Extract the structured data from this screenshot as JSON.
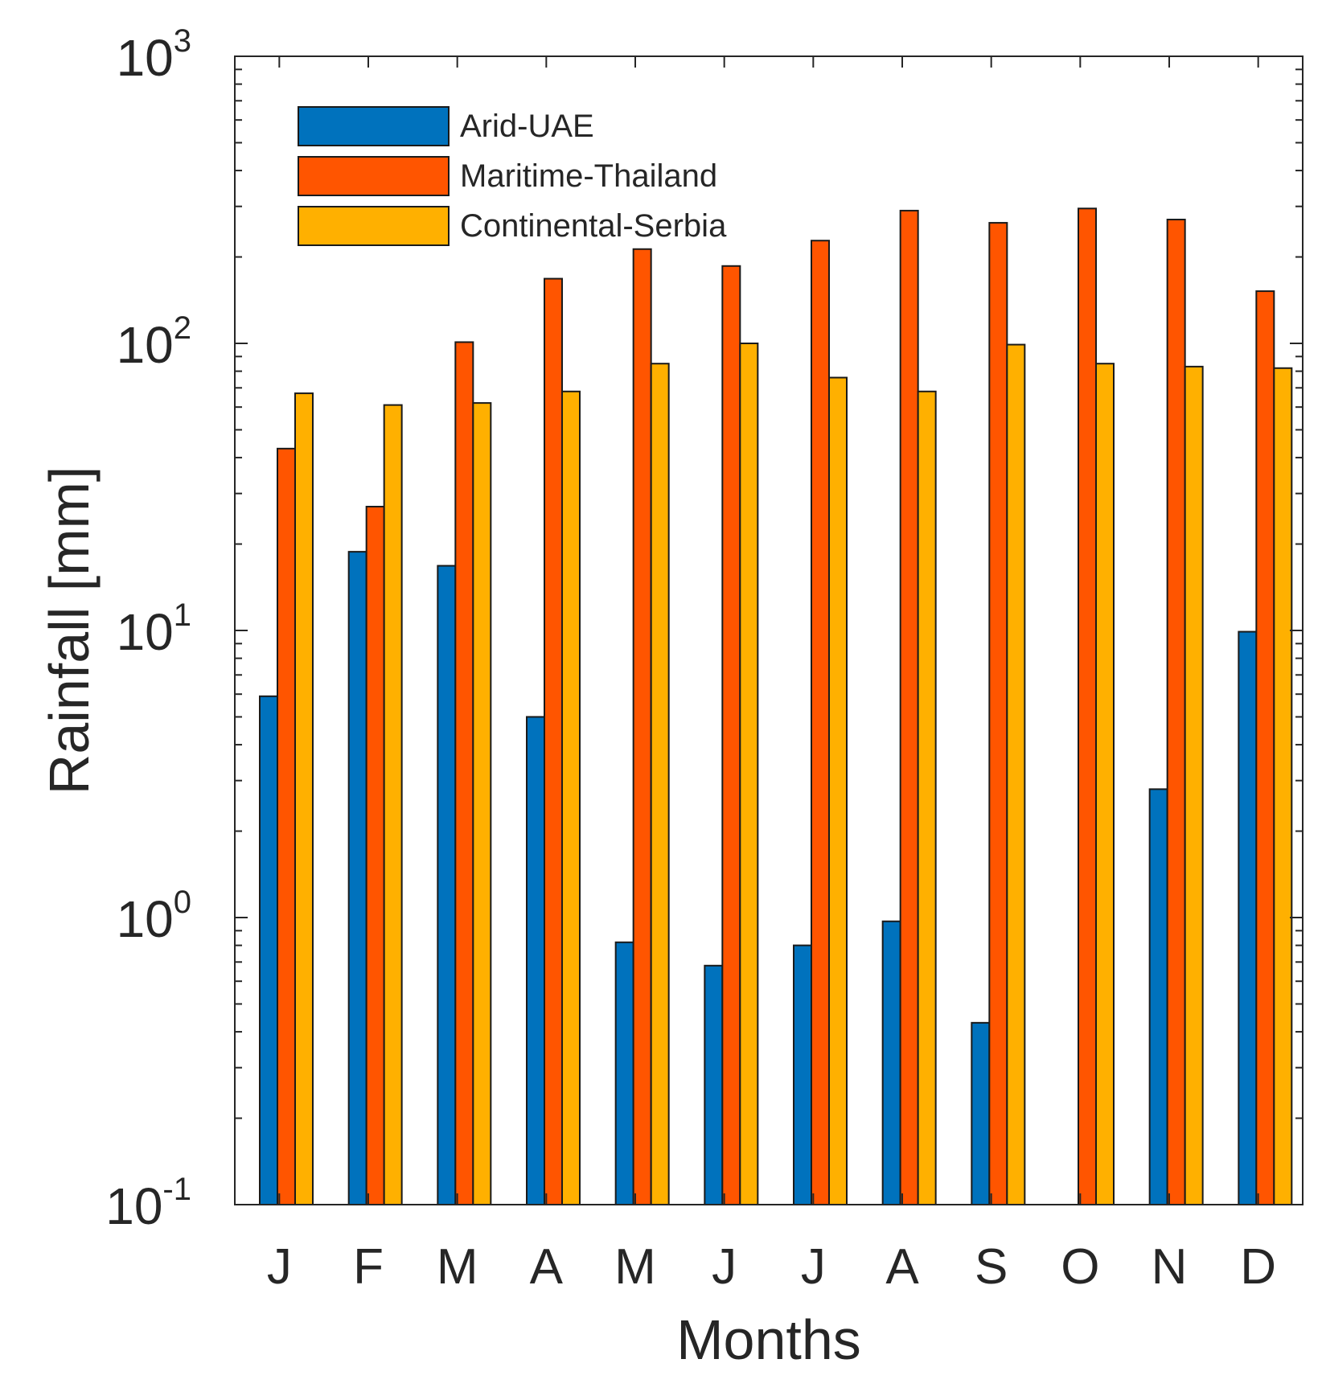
{
  "chart_data": {
    "type": "bar",
    "yscale": "log",
    "categories": [
      "J",
      "F",
      "M",
      "A",
      "M",
      "J",
      "J",
      "A",
      "S",
      "O",
      "N",
      "D"
    ],
    "series": [
      {
        "name": "Arid-UAE",
        "color": "#0072BD",
        "values": [
          5.9,
          18.8,
          16.8,
          5.0,
          0.82,
          0.68,
          0.8,
          0.97,
          0.43,
          null,
          2.8,
          9.9
        ]
      },
      {
        "name": "Maritime-Thailand",
        "color": "#FF5500",
        "values": [
          43,
          27,
          101,
          168,
          213,
          186,
          228,
          290,
          263,
          295,
          270,
          152
        ]
      },
      {
        "name": "Continental-Serbia",
        "color": "#FFB000",
        "values": [
          67,
          61,
          62,
          68,
          85,
          100,
          76,
          68,
          99,
          85,
          83,
          82
        ]
      }
    ],
    "xlabel": "Months",
    "ylabel": "Rainfall [mm]",
    "ylim": [
      0.1,
      1000
    ],
    "yticks": [
      {
        "base": "10",
        "exp": "-1"
      },
      {
        "base": "10",
        "exp": "0"
      },
      {
        "base": "10",
        "exp": "1"
      },
      {
        "base": "10",
        "exp": "2"
      },
      {
        "base": "10",
        "exp": "3"
      }
    ],
    "legend": "top-left",
    "grid": false
  }
}
